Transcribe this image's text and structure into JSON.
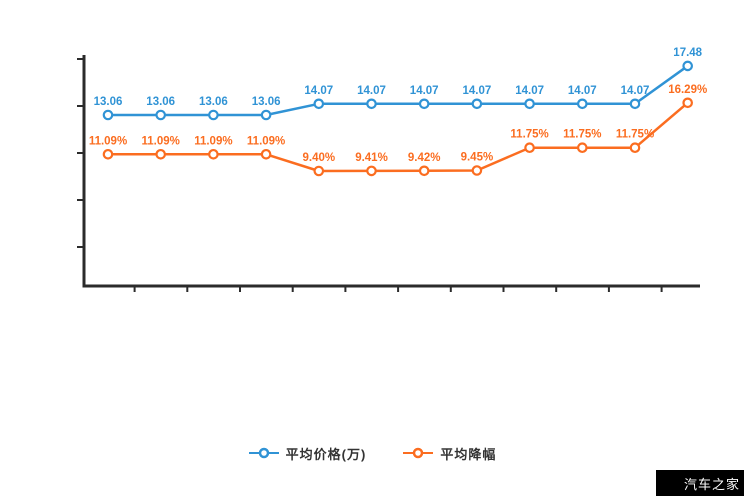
{
  "chart_data": {
    "type": "line",
    "title": "",
    "x_labels_visible": false,
    "y_labels_visible": false,
    "grid": false,
    "legend_position": "bottom",
    "point_count": 12,
    "series": [
      {
        "name": "平均价格(万)",
        "color": "#3093d5",
        "unit": "万",
        "values": [
          13.06,
          13.06,
          13.06,
          13.06,
          14.07,
          14.07,
          14.07,
          14.07,
          14.07,
          14.07,
          14.07,
          17.48
        ],
        "labels": [
          "13.06",
          "13.06",
          "13.06",
          "13.06",
          "14.07",
          "14.07",
          "14.07",
          "14.07",
          "14.07",
          "14.07",
          "14.07",
          "17.48"
        ]
      },
      {
        "name": "平均降幅",
        "color": "#fb6d20",
        "unit": "%",
        "values": [
          11.09,
          11.09,
          11.09,
          11.09,
          9.4,
          9.41,
          9.42,
          9.45,
          11.75,
          11.75,
          11.75,
          16.29
        ],
        "labels": [
          "11.09%",
          "11.09%",
          "11.09%",
          "11.09%",
          "9.40%",
          "9.41%",
          "9.42%",
          "9.45%",
          "11.75%",
          "11.75%",
          "11.75%",
          "16.29%"
        ]
      }
    ],
    "axis_color": "#2b2b2b"
  },
  "legend": {
    "items": [
      {
        "label": "平均价格(万)",
        "color": "#3093d5"
      },
      {
        "label": "平均降幅",
        "color": "#fb6d20"
      }
    ]
  },
  "watermark": {
    "text": "汽车之家",
    "bg": "#000000",
    "fg": "#ffffff"
  }
}
